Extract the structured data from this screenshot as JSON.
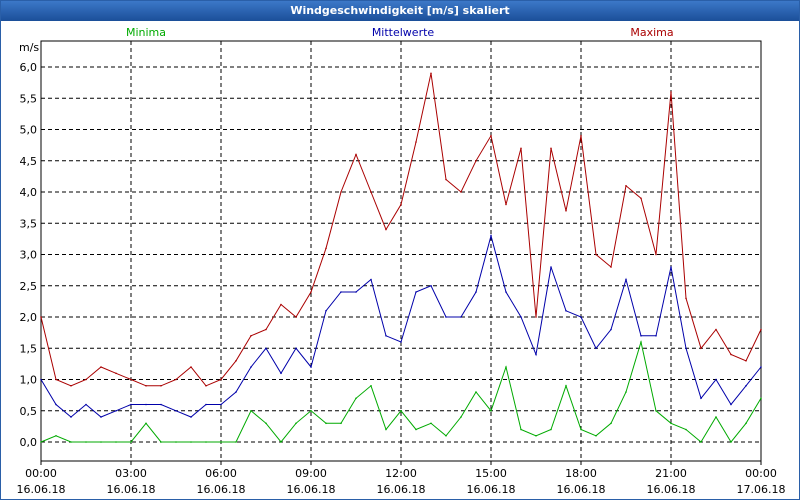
{
  "window": {
    "title": "Windgeschwindigkeit [m/s] skaliert"
  },
  "chart_data": {
    "type": "line",
    "title": "Windgeschwindigkeit [m/s] skaliert",
    "ylabel": "m/s",
    "xlabel": "",
    "ylim": [
      -0.3,
      6.4
    ],
    "xlim": [
      0,
      24
    ],
    "grid": true,
    "legend": [
      "Minima",
      "Mittelwerte",
      "Maxima"
    ],
    "legend_placement": "top",
    "y_ticks": [
      "0,0",
      "0,5",
      "1,0",
      "1,5",
      "2,0",
      "2,5",
      "3,0",
      "3,5",
      "4,0",
      "4,5",
      "5,0",
      "5,5",
      "6,0"
    ],
    "x_ticks": [
      {
        "time": "00:00",
        "date": "16.06.18"
      },
      {
        "time": "03:00",
        "date": "16.06.18"
      },
      {
        "time": "06:00",
        "date": "16.06.18"
      },
      {
        "time": "09:00",
        "date": "16.06.18"
      },
      {
        "time": "12:00",
        "date": "16.06.18"
      },
      {
        "time": "15:00",
        "date": "16.06.18"
      },
      {
        "time": "18:00",
        "date": "16.06.18"
      },
      {
        "time": "21:00",
        "date": "16.06.18"
      },
      {
        "time": "00:00",
        "date": "17.06.18"
      }
    ],
    "x": [
      0,
      0.5,
      1,
      1.5,
      2,
      2.5,
      3,
      3.5,
      4,
      4.5,
      5,
      5.5,
      6,
      6.5,
      7,
      7.5,
      8,
      8.5,
      9,
      9.5,
      10,
      10.5,
      11,
      11.5,
      12,
      12.5,
      13,
      13.5,
      14,
      14.5,
      15,
      15.5,
      16,
      16.5,
      17,
      17.5,
      18,
      18.5,
      19,
      19.5,
      20,
      20.5,
      21,
      21.5,
      22,
      22.5,
      23,
      23.5,
      24
    ],
    "series": [
      {
        "name": "Minima",
        "color": "#00aa00",
        "values": [
          0.0,
          0.1,
          0.0,
          0.0,
          0.0,
          0.0,
          0.0,
          0.3,
          0.0,
          0.0,
          0.0,
          0.0,
          0.0,
          0.0,
          0.5,
          0.3,
          0.0,
          0.3,
          0.5,
          0.3,
          0.3,
          0.7,
          0.9,
          0.2,
          0.5,
          0.2,
          0.3,
          0.1,
          0.4,
          0.8,
          0.5,
          1.2,
          0.2,
          0.1,
          0.2,
          0.9,
          0.2,
          0.1,
          0.3,
          0.8,
          1.6,
          0.5,
          0.3,
          0.2,
          0.0,
          0.4,
          0.0,
          0.3,
          0.7
        ]
      },
      {
        "name": "Mittelwerte",
        "color": "#0000aa",
        "values": [
          1.0,
          0.6,
          0.4,
          0.6,
          0.4,
          0.5,
          0.6,
          0.6,
          0.6,
          0.5,
          0.4,
          0.6,
          0.6,
          0.8,
          1.2,
          1.5,
          1.1,
          1.5,
          1.2,
          2.1,
          2.4,
          2.4,
          2.6,
          1.7,
          1.6,
          2.4,
          2.5,
          2.0,
          2.0,
          2.4,
          3.3,
          2.4,
          2.0,
          1.4,
          2.8,
          2.1,
          2.0,
          1.5,
          1.8,
          2.6,
          1.7,
          1.7,
          2.8,
          1.5,
          0.7,
          1.0,
          0.6,
          0.9,
          1.2
        ]
      },
      {
        "name": "Maxima",
        "color": "#aa0000",
        "values": [
          2.0,
          1.0,
          0.9,
          1.0,
          1.2,
          1.1,
          1.0,
          0.9,
          0.9,
          1.0,
          1.2,
          0.9,
          1.0,
          1.3,
          1.7,
          1.8,
          2.2,
          2.0,
          2.4,
          3.1,
          4.0,
          4.6,
          4.0,
          3.4,
          3.8,
          4.8,
          5.9,
          4.2,
          4.0,
          4.5,
          4.9,
          3.8,
          4.7,
          2.0,
          4.7,
          3.7,
          4.9,
          3.0,
          2.8,
          4.1,
          3.9,
          3.0,
          5.6,
          2.3,
          1.5,
          1.8,
          1.4,
          1.3,
          1.8
        ]
      }
    ]
  }
}
